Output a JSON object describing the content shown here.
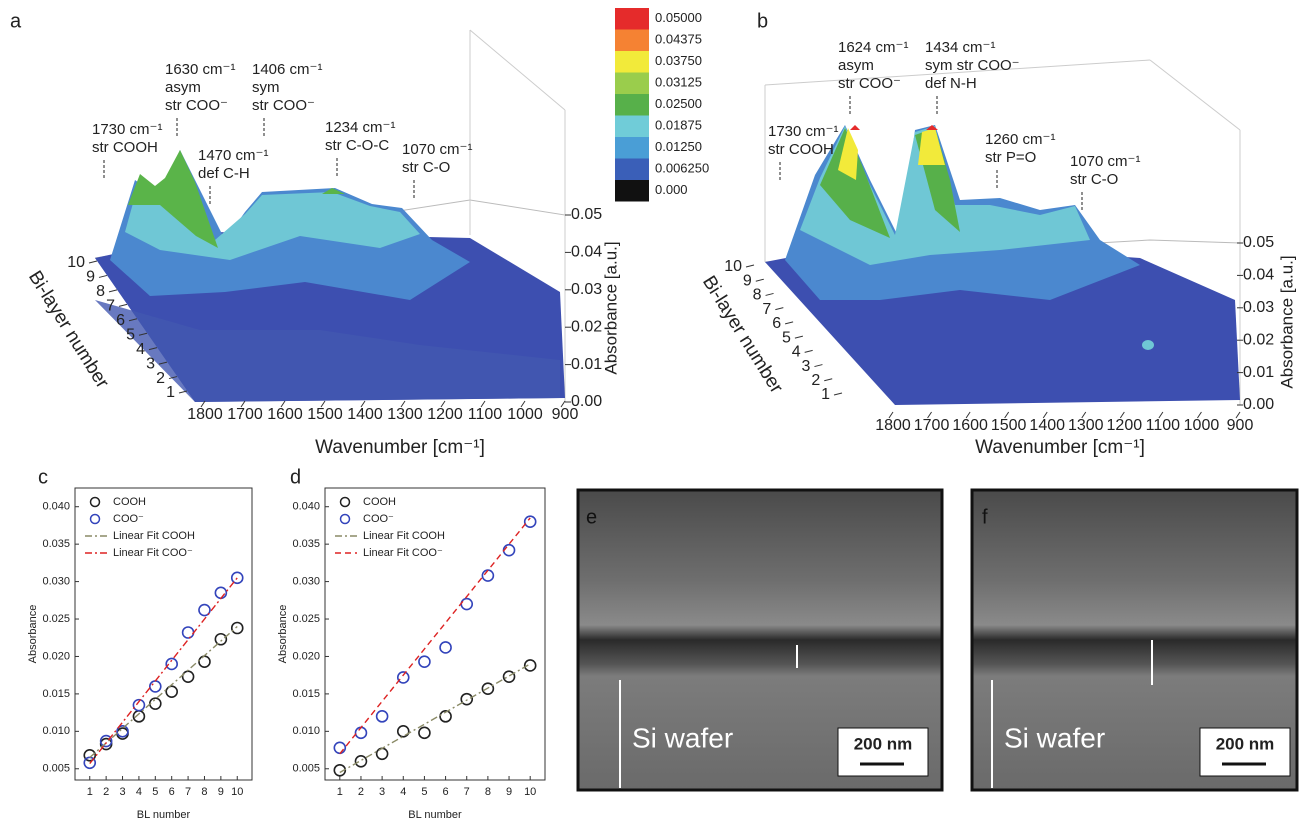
{
  "chart_data": [
    {
      "type": "surface",
      "panel": "a",
      "xlabel": "Wavenumber [cm⁻¹]",
      "ylabel": "Bi-layer number",
      "zlabel": "Absorbance [a.u.]",
      "xticks": [
        1800,
        1700,
        1600,
        1500,
        1400,
        1300,
        1200,
        1100,
        1000,
        900
      ],
      "yticks": [
        1,
        2,
        3,
        4,
        5,
        6,
        7,
        8,
        9,
        10
      ],
      "zticks": [
        {
          "value": 0,
          "label": "0.00"
        },
        {
          "value": 0.01,
          "label": "0.01"
        },
        {
          "value": 0.02,
          "label": "0.02"
        },
        {
          "value": 0.03,
          "label": "0.03"
        },
        {
          "value": 0.04,
          "label": "0.04"
        },
        {
          "value": 0.05,
          "label": "0.05"
        }
      ],
      "annotations": [
        {
          "lines": [
            "1730 cm⁻¹",
            "str COOH"
          ]
        },
        {
          "lines": [
            "1630 cm⁻¹",
            "asym",
            "str COO⁻"
          ]
        },
        {
          "lines": [
            "1470 cm⁻¹",
            "def C-H"
          ]
        },
        {
          "lines": [
            "1406 cm⁻¹",
            "sym",
            "str COO⁻"
          ]
        },
        {
          "lines": [
            "1234 cm⁻¹",
            "str C-O-C"
          ]
        },
        {
          "lines": [
            "1070 cm⁻¹",
            "str C-O"
          ]
        }
      ],
      "colorbar": {
        "levels": [
          {
            "value": 0.05,
            "label": "0.05000",
            "color": "#e52b2b"
          },
          {
            "value": 0.04375,
            "label": "0.04375",
            "color": "#f58233"
          },
          {
            "value": 0.0375,
            "label": "0.03750",
            "color": "#f2ea3a"
          },
          {
            "value": 0.03125,
            "label": "0.03125",
            "color": "#9acd4c"
          },
          {
            "value": 0.025,
            "label": "0.02500",
            "color": "#57b04a"
          },
          {
            "value": 0.01875,
            "label": "0.01875",
            "color": "#70ccd8"
          },
          {
            "value": 0.0125,
            "label": "0.01250",
            "color": "#4a9ed6"
          },
          {
            "value": 0.00625,
            "label": "0.006250",
            "color": "#3a5fb8"
          },
          {
            "value": 0,
            "label": "0.000",
            "color": "#111111"
          }
        ]
      }
    },
    {
      "type": "surface",
      "panel": "b",
      "xlabel": "Wavenumber [cm⁻¹]",
      "ylabel": "Bi-layer number",
      "zlabel": "Absorbance [a.u.]",
      "xticks": [
        1800,
        1700,
        1600,
        1500,
        1400,
        1300,
        1200,
        1100,
        1000,
        900
      ],
      "yticks": [
        1,
        2,
        3,
        4,
        5,
        6,
        7,
        8,
        9,
        10
      ],
      "zticks": [
        {
          "value": 0,
          "label": "0.00"
        },
        {
          "value": 0.01,
          "label": "0.01"
        },
        {
          "value": 0.02,
          "label": "0.02"
        },
        {
          "value": 0.03,
          "label": "0.03"
        },
        {
          "value": 0.04,
          "label": "0.04"
        },
        {
          "value": 0.05,
          "label": "0.05"
        }
      ],
      "annotations": [
        {
          "lines": [
            "1730 cm⁻¹",
            "str COOH"
          ]
        },
        {
          "lines": [
            "1624 cm⁻¹",
            "asym",
            "str COO⁻"
          ]
        },
        {
          "lines": [
            "1434 cm⁻¹",
            "sym str COO⁻",
            "def N-H"
          ]
        },
        {
          "lines": [
            "1260 cm⁻¹",
            "str P=O"
          ]
        },
        {
          "lines": [
            "1070 cm⁻¹",
            "str C-O"
          ]
        }
      ]
    },
    {
      "type": "scatter",
      "panel": "c",
      "xlabel": "BL number",
      "ylabel": "Absorbance",
      "xlim": [
        0.1,
        10.9
      ],
      "ylim": [
        0.0035,
        0.0425
      ],
      "xticks": [
        1,
        2,
        3,
        4,
        5,
        6,
        7,
        8,
        9,
        10
      ],
      "yticks": [
        0.005,
        {
          "value": 0.01,
          "label": "0.010"
        },
        0.015,
        {
          "value": 0.02,
          "label": "0.020"
        },
        0.025,
        {
          "value": 0.03,
          "label": "0.030"
        },
        0.035,
        {
          "value": 0.04,
          "label": "0.040"
        }
      ],
      "x": [
        1,
        2,
        3,
        4,
        5,
        6,
        7,
        8,
        9,
        10
      ],
      "series": [
        {
          "name": "COOH",
          "color": "#222222",
          "marker": "circle",
          "values": [
            0.0068,
            0.0083,
            0.0097,
            0.012,
            0.0137,
            0.0153,
            0.0173,
            0.0193,
            0.0223,
            0.0238
          ]
        },
        {
          "name": "COO⁻",
          "color": "#3344bb",
          "marker": "circle",
          "values": [
            0.0058,
            0.0087,
            0.01,
            0.0135,
            0.016,
            0.019,
            0.0232,
            0.0262,
            0.0285,
            0.0305
          ]
        },
        {
          "name": "Linear Fit COOH",
          "color": "#8a8a66",
          "dash": "7 3 2 3",
          "x": [
            1,
            10
          ],
          "values": [
            0.0065,
            0.024
          ]
        },
        {
          "name": "Linear Fit COO⁻",
          "color": "#dd2222",
          "dash": "7 3 2 3",
          "x": [
            1,
            10
          ],
          "values": [
            0.0057,
            0.0305
          ]
        }
      ]
    },
    {
      "type": "scatter",
      "panel": "d",
      "xlabel": "BL number",
      "ylabel": "Absorbance",
      "xlim": [
        0.3,
        10.7
      ],
      "ylim": [
        0.0035,
        0.0425
      ],
      "xticks": [
        1,
        2,
        3,
        4,
        5,
        6,
        7,
        8,
        9,
        10
      ],
      "yticks": [
        0.005,
        {
          "value": 0.01,
          "label": "0.010"
        },
        0.015,
        {
          "value": 0.02,
          "label": "0.020"
        },
        0.025,
        {
          "value": 0.03,
          "label": "0.030"
        },
        0.035,
        {
          "value": 0.04,
          "label": "0.040"
        }
      ],
      "x": [
        1,
        2,
        3,
        4,
        5,
        6,
        7,
        8,
        9,
        10
      ],
      "series": [
        {
          "name": "COOH",
          "color": "#222222",
          "marker": "circle",
          "values": [
            0.0048,
            0.006,
            0.007,
            0.01,
            0.0098,
            0.012,
            0.0143,
            0.0157,
            0.0173,
            0.0188
          ]
        },
        {
          "name": "COO⁻",
          "color": "#3344bb",
          "marker": "circle",
          "values": [
            0.0078,
            0.0098,
            0.012,
            0.0172,
            0.0193,
            0.0212,
            0.027,
            0.0308,
            0.0342,
            0.038
          ]
        },
        {
          "name": "Linear Fit COOH",
          "color": "#8a8a66",
          "dash": "7 3 2 3",
          "x": [
            1,
            10
          ],
          "values": [
            0.0045,
            0.019
          ]
        },
        {
          "name": "Linear Fit COO⁻",
          "color": "#dd2222",
          "dash": "6 4",
          "x": [
            1,
            10
          ],
          "values": [
            0.007,
            0.0385
          ]
        }
      ]
    }
  ],
  "images": [
    {
      "label": "e",
      "substrate": "Si wafer",
      "scale_bar": "200 nm"
    },
    {
      "label": "f",
      "substrate": "Si wafer",
      "scale_bar": "200 nm"
    }
  ]
}
